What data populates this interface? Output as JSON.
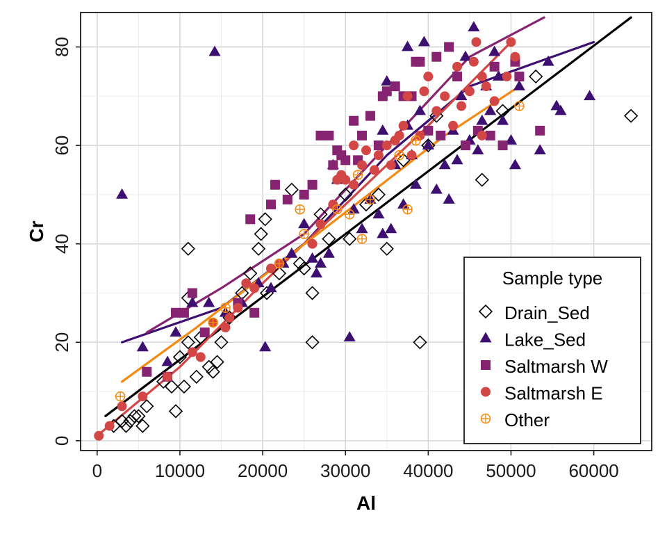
{
  "chart_data": {
    "type": "scatter",
    "xlabel": "Al",
    "ylabel": "Cr",
    "xlim": [
      -2000,
      67000
    ],
    "ylim": [
      -2,
      87
    ],
    "x_ticks": [
      0,
      10000,
      20000,
      30000,
      40000,
      50000,
      60000
    ],
    "y_ticks": [
      0,
      20,
      40,
      60,
      80
    ],
    "grid": true,
    "legend": {
      "title": "Sample type",
      "placement": "bottom-right"
    },
    "series": [
      {
        "name": "Drain_Sed",
        "color": "#000000",
        "marker": "diamond-open",
        "points": [
          [
            2000,
            3
          ],
          [
            3000,
            4
          ],
          [
            3500,
            3
          ],
          [
            4000,
            4
          ],
          [
            4500,
            5
          ],
          [
            5000,
            5
          ],
          [
            5500,
            3
          ],
          [
            6000,
            7
          ],
          [
            8000,
            12
          ],
          [
            9000,
            11
          ],
          [
            9500,
            6
          ],
          [
            10000,
            17
          ],
          [
            10500,
            11
          ],
          [
            11000,
            20
          ],
          [
            11000,
            39
          ],
          [
            11000,
            29
          ],
          [
            12000,
            13
          ],
          [
            12500,
            21
          ],
          [
            13500,
            15
          ],
          [
            14000,
            14
          ],
          [
            14500,
            16
          ],
          [
            15000,
            20
          ],
          [
            16000,
            25
          ],
          [
            17500,
            30
          ],
          [
            18500,
            34
          ],
          [
            19500,
            39
          ],
          [
            19800,
            42
          ],
          [
            20300,
            45
          ],
          [
            20500,
            30
          ],
          [
            22000,
            34
          ],
          [
            23500,
            51
          ],
          [
            24500,
            36
          ],
          [
            25000,
            35
          ],
          [
            26000,
            30
          ],
          [
            26000,
            20
          ],
          [
            27000,
            46
          ],
          [
            28000,
            41
          ],
          [
            30000,
            50
          ],
          [
            30500,
            41
          ],
          [
            32500,
            48
          ],
          [
            34000,
            50
          ],
          [
            35000,
            39
          ],
          [
            37000,
            57
          ],
          [
            39000,
            20
          ],
          [
            40000,
            60
          ],
          [
            41000,
            66
          ],
          [
            46500,
            53
          ],
          [
            49000,
            67
          ],
          [
            53000,
            74
          ],
          [
            64500,
            66
          ]
        ]
      },
      {
        "name": "Lake_Sed",
        "color": "#3c0f70",
        "marker": "triangle",
        "points": [
          [
            3000,
            50
          ],
          [
            5500,
            19
          ],
          [
            8500,
            16
          ],
          [
            9500,
            22
          ],
          [
            11500,
            28
          ],
          [
            13500,
            28
          ],
          [
            14200,
            79
          ],
          [
            15500,
            26
          ],
          [
            17500,
            28
          ],
          [
            19500,
            32
          ],
          [
            20300,
            19
          ],
          [
            21000,
            31
          ],
          [
            22500,
            36
          ],
          [
            23500,
            38
          ],
          [
            25000,
            44
          ],
          [
            26000,
            37
          ],
          [
            26500,
            34
          ],
          [
            27000,
            36
          ],
          [
            28000,
            38
          ],
          [
            28500,
            56
          ],
          [
            29000,
            53
          ],
          [
            30500,
            21
          ],
          [
            31000,
            47
          ],
          [
            32000,
            43
          ],
          [
            33000,
            49
          ],
          [
            34000,
            46
          ],
          [
            34500,
            42
          ],
          [
            34500,
            63
          ],
          [
            35500,
            43
          ],
          [
            36000,
            56
          ],
          [
            37000,
            48
          ],
          [
            37500,
            64
          ],
          [
            38000,
            58
          ],
          [
            38500,
            52
          ],
          [
            39000,
            67
          ],
          [
            40000,
            60
          ],
          [
            41000,
            51
          ],
          [
            42000,
            56
          ],
          [
            42500,
            49
          ],
          [
            43000,
            63
          ],
          [
            43500,
            57
          ],
          [
            44000,
            70
          ],
          [
            44500,
            78
          ],
          [
            45000,
            61
          ],
          [
            45500,
            84
          ],
          [
            46000,
            59
          ],
          [
            46500,
            65
          ],
          [
            47000,
            72
          ],
          [
            47500,
            67
          ],
          [
            48000,
            79
          ],
          [
            48500,
            74
          ],
          [
            49000,
            65
          ],
          [
            50000,
            61
          ],
          [
            50500,
            56
          ],
          [
            51000,
            72
          ],
          [
            53500,
            59
          ],
          [
            54500,
            77
          ],
          [
            55500,
            68
          ],
          [
            56000,
            67
          ],
          [
            59500,
            70
          ],
          [
            39500,
            81
          ],
          [
            37500,
            80
          ],
          [
            35000,
            73
          ]
        ]
      },
      {
        "name": "Saltmarsh W",
        "color": "#862472",
        "marker": "square",
        "points": [
          [
            6000,
            14
          ],
          [
            8500,
            13
          ],
          [
            9500,
            26
          ],
          [
            10500,
            26
          ],
          [
            11500,
            30
          ],
          [
            13000,
            22
          ],
          [
            17000,
            28
          ],
          [
            18500,
            45
          ],
          [
            19000,
            26
          ],
          [
            21000,
            48
          ],
          [
            21500,
            52
          ],
          [
            23000,
            49
          ],
          [
            25000,
            50
          ],
          [
            26000,
            52
          ],
          [
            27000,
            62
          ],
          [
            28000,
            62
          ],
          [
            28500,
            56
          ],
          [
            29500,
            58
          ],
          [
            30000,
            57
          ],
          [
            31000,
            65
          ],
          [
            32000,
            62
          ],
          [
            33000,
            66
          ],
          [
            34000,
            60
          ],
          [
            34500,
            70
          ],
          [
            35000,
            71
          ],
          [
            36000,
            72
          ],
          [
            37000,
            70
          ],
          [
            38000,
            70
          ],
          [
            38500,
            77
          ],
          [
            39000,
            77
          ],
          [
            40000,
            63
          ],
          [
            41000,
            78
          ],
          [
            41500,
            62
          ],
          [
            42500,
            80
          ],
          [
            43500,
            74
          ],
          [
            44500,
            60
          ],
          [
            46000,
            63
          ],
          [
            47500,
            62
          ],
          [
            48000,
            76
          ],
          [
            49000,
            60
          ],
          [
            50500,
            77
          ],
          [
            51000,
            74
          ],
          [
            53500,
            63
          ],
          [
            29000,
            59
          ],
          [
            31500,
            57
          ]
        ]
      },
      {
        "name": "Saltmarsh E",
        "color": "#d24745",
        "marker": "circle",
        "points": [
          [
            200,
            1
          ],
          [
            1500,
            3
          ],
          [
            3000,
            7
          ],
          [
            5500,
            9
          ],
          [
            8500,
            13
          ],
          [
            11500,
            18
          ],
          [
            12500,
            17
          ],
          [
            14000,
            24
          ],
          [
            15500,
            23
          ],
          [
            16000,
            25
          ],
          [
            17000,
            27
          ],
          [
            18000,
            32
          ],
          [
            19000,
            31
          ],
          [
            21000,
            35
          ],
          [
            22000,
            36
          ],
          [
            26000,
            40
          ],
          [
            27000,
            44
          ],
          [
            28500,
            48
          ],
          [
            29000,
            53
          ],
          [
            29500,
            54
          ],
          [
            30000,
            53
          ],
          [
            31000,
            52
          ],
          [
            32000,
            56
          ],
          [
            32500,
            59
          ],
          [
            33500,
            55
          ],
          [
            34000,
            58
          ],
          [
            35000,
            60
          ],
          [
            35500,
            56
          ],
          [
            36000,
            61
          ],
          [
            37000,
            64
          ],
          [
            37500,
            70
          ],
          [
            38000,
            58
          ],
          [
            39000,
            62
          ],
          [
            39500,
            71
          ],
          [
            40000,
            74
          ],
          [
            41000,
            67
          ],
          [
            42000,
            70
          ],
          [
            43000,
            64
          ],
          [
            43500,
            76
          ],
          [
            44000,
            68
          ],
          [
            45000,
            71
          ],
          [
            45500,
            77
          ],
          [
            45800,
            81
          ],
          [
            46500,
            74
          ],
          [
            47000,
            72
          ],
          [
            48000,
            69
          ],
          [
            49500,
            74
          ],
          [
            50000,
            81
          ],
          [
            50500,
            78
          ],
          [
            46500,
            62
          ],
          [
            36500,
            62
          ],
          [
            31000,
            60
          ]
        ]
      },
      {
        "name": "Other",
        "color": "#f38a12",
        "marker": "circle-plus",
        "points": [
          [
            2800,
            9
          ],
          [
            14000,
            24
          ],
          [
            15500,
            27
          ],
          [
            22000,
            36
          ],
          [
            24500,
            47
          ],
          [
            25000,
            42
          ],
          [
            29000,
            47
          ],
          [
            30500,
            46
          ],
          [
            31500,
            54
          ],
          [
            32000,
            41
          ],
          [
            33000,
            49
          ],
          [
            36500,
            58
          ],
          [
            37500,
            47
          ],
          [
            38500,
            61
          ],
          [
            51000,
            68
          ]
        ]
      }
    ],
    "trend_lines": [
      {
        "name": "Drain_Sed",
        "color": "#000000",
        "points": [
          [
            1000,
            5
          ],
          [
            64500,
            86
          ]
        ]
      },
      {
        "name": "Lake_Sed",
        "color": "#3c0f70",
        "points": [
          [
            3000,
            20
          ],
          [
            15000,
            27
          ],
          [
            25000,
            40
          ],
          [
            35000,
            58
          ],
          [
            45000,
            72
          ],
          [
            60000,
            81
          ]
        ]
      },
      {
        "name": "Saltmarsh W",
        "color": "#862472",
        "points": [
          [
            6000,
            22
          ],
          [
            15000,
            31
          ],
          [
            25000,
            42
          ],
          [
            35000,
            60
          ],
          [
            45000,
            78
          ],
          [
            54000,
            86
          ]
        ]
      },
      {
        "name": "Saltmarsh E",
        "color": "#d24745",
        "points": [
          [
            0,
            1
          ],
          [
            10000,
            15
          ],
          [
            20000,
            32
          ],
          [
            30000,
            48
          ],
          [
            40000,
            64
          ],
          [
            50000,
            81
          ]
        ]
      },
      {
        "name": "Other",
        "color": "#f38a12",
        "points": [
          [
            3000,
            12
          ],
          [
            12000,
            23
          ],
          [
            22000,
            36
          ],
          [
            32000,
            49
          ],
          [
            42000,
            62
          ],
          [
            51000,
            72
          ]
        ]
      }
    ]
  }
}
